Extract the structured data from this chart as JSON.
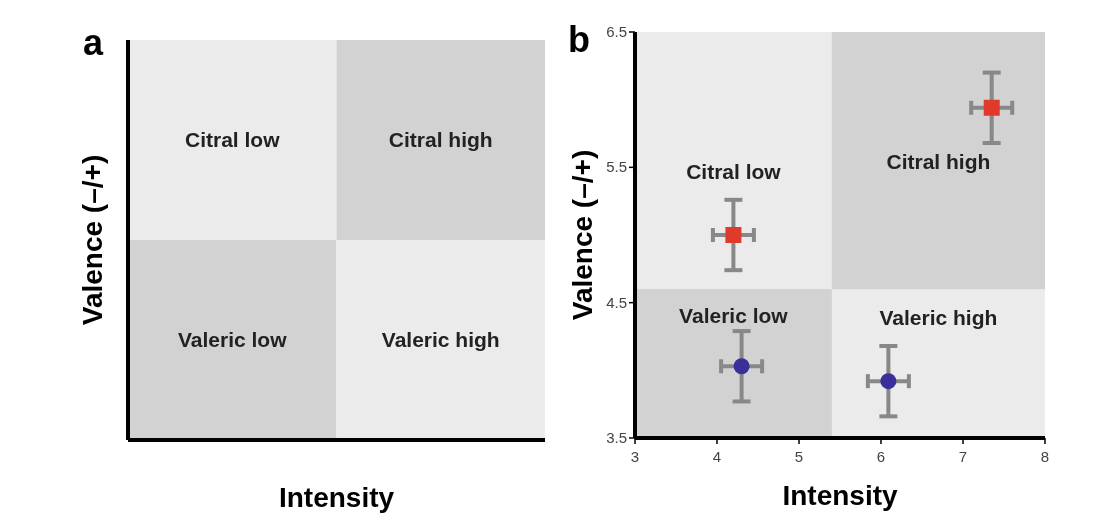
{
  "chart_data": [
    {
      "type": "other",
      "title": "a",
      "xlabel": "Intensity",
      "ylabel": "Valence (–/+)",
      "annotations": [
        "Citral low",
        "Citral high",
        "Valeric low",
        "Valeric high"
      ],
      "colors": [
        "#ebebeb",
        "#d2d2d2",
        "#d2d2d2",
        "#ebebeb"
      ]
    },
    {
      "type": "scatter",
      "title": "b",
      "xlabel": "Intensity",
      "ylabel": "Valence (–/+)",
      "xlim": [
        3,
        8
      ],
      "ylim": [
        3.5,
        6.5
      ],
      "xticks": [
        3,
        4,
        5,
        6,
        7,
        8
      ],
      "yticks": [
        3.5,
        4.5,
        5.5,
        6.5
      ],
      "bands": [
        {
          "axis": "x",
          "from": 5.4,
          "to": 8,
          "color": "#d2d2d2"
        },
        {
          "axis": "y",
          "from": 3.5,
          "to": 4.6,
          "color": "#d2d2d2"
        }
      ],
      "annotations": [
        "Citral low",
        "Citral high",
        "Valeric low",
        "Valeric high"
      ],
      "series": [
        {
          "color": "#e03a2c",
          "marker": "square",
          "x": [
            4.2
          ],
          "values": [
            5.0
          ],
          "errors": [
            0.26
          ],
          "xerrors": [
            0.25
          ]
        },
        {
          "color": "#e03a2c",
          "marker": "square",
          "x": [
            7.35
          ],
          "values": [
            5.94
          ],
          "errors": [
            0.26
          ],
          "xerrors": [
            0.25
          ]
        },
        {
          "color": "#3b2f9a",
          "marker": "circle",
          "x": [
            4.3
          ],
          "values": [
            4.03
          ],
          "errors": [
            0.26
          ],
          "xerrors": [
            0.25
          ]
        },
        {
          "color": "#3b2f9a",
          "marker": "circle",
          "x": [
            6.09
          ],
          "values": [
            3.92
          ],
          "errors": [
            0.26
          ],
          "xerrors": [
            0.25
          ]
        }
      ]
    }
  ]
}
